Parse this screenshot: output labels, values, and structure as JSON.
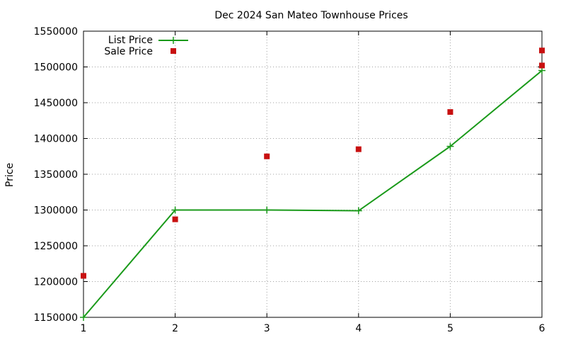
{
  "chart_data": {
    "type": "line",
    "title": "Dec 2024 San Mateo Townhouse Prices",
    "ylabel": "Price",
    "xlabel": "",
    "xlim": [
      1,
      6
    ],
    "ylim": [
      1150000,
      1550000
    ],
    "x_ticks": [
      "1",
      "2",
      "3",
      "4",
      "5",
      "6"
    ],
    "y_ticks": [
      "1150000",
      "1200000",
      "1250000",
      "1300000",
      "1350000",
      "1400000",
      "1450000",
      "1500000",
      "1550000"
    ],
    "grid": true,
    "legend_position": "top-left",
    "series": [
      {
        "name": "List Price",
        "style": "line-points",
        "color": "#1a9a1a",
        "x": [
          1,
          2,
          3,
          4,
          5,
          6
        ],
        "y": [
          1150000,
          1300000,
          1300000,
          1299000,
          1389000,
          1495000
        ]
      },
      {
        "name": "Sale Price",
        "style": "points",
        "color": "#c81010",
        "x": [
          1,
          2,
          3,
          4,
          5,
          6
        ],
        "y": [
          1208000,
          1287000,
          1375000,
          1385000,
          1437000,
          1523000
        ]
      }
    ],
    "extra_points": [
      {
        "series": "Sale Price",
        "x": 6,
        "y": 1502000
      }
    ]
  }
}
